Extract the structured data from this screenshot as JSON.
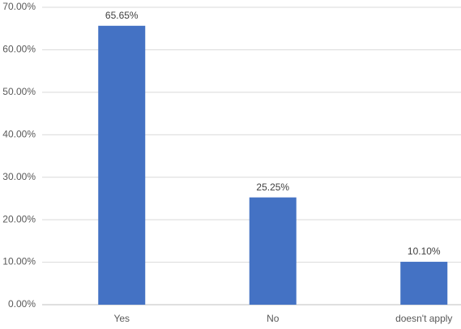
{
  "chart_data": {
    "type": "bar",
    "categories": [
      "Yes",
      "No",
      "doesn't apply"
    ],
    "values": [
      65.65,
      25.25,
      10.1
    ],
    "value_labels": [
      "65.65%",
      "25.25%",
      "10.10%"
    ],
    "color": "#4472c4",
    "ylim": [
      0,
      70
    ],
    "yticks": [
      {
        "value": 0,
        "label": "0.00%"
      },
      {
        "value": 10,
        "label": "10.00%"
      },
      {
        "value": 20,
        "label": "20.00%"
      },
      {
        "value": 30,
        "label": "30.00%"
      },
      {
        "value": 40,
        "label": "40.00%"
      },
      {
        "value": 50,
        "label": "50.00%"
      },
      {
        "value": 60,
        "label": "60.00%"
      },
      {
        "value": 70,
        "label": "70.00%"
      }
    ],
    "grid": true
  }
}
